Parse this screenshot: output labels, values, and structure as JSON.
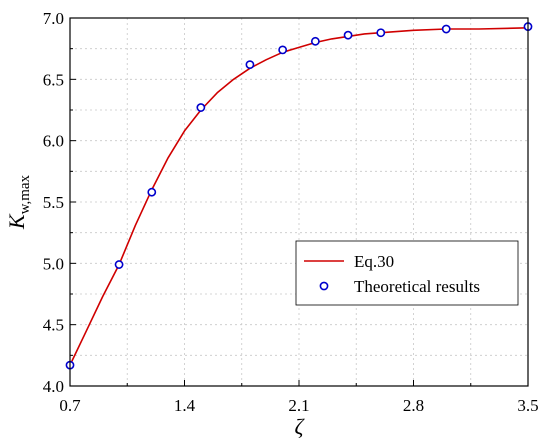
{
  "chart_data": {
    "type": "line",
    "xlabel": "ζ",
    "ylabel_main": "K",
    "ylabel_sub": "w,max",
    "xlim": [
      0.7,
      3.5
    ],
    "ylim": [
      4.0,
      7.0
    ],
    "xticks": [
      "0.7",
      "1.4",
      "2.1",
      "2.8",
      "3.5"
    ],
    "yticks": [
      "4.0",
      "4.5",
      "5.0",
      "5.5",
      "6.0",
      "6.5",
      "7.0"
    ],
    "grid": true,
    "legend_position": "bottom-right",
    "series": [
      {
        "name": "Eq.30",
        "kind": "line",
        "color": "#d00000",
        "x": [
          0.7,
          0.8,
          0.9,
          1.0,
          1.1,
          1.2,
          1.3,
          1.4,
          1.5,
          1.6,
          1.7,
          1.8,
          1.9,
          2.0,
          2.1,
          2.2,
          2.3,
          2.4,
          2.5,
          2.6,
          2.8,
          3.0,
          3.2,
          3.5
        ],
        "y": [
          4.17,
          4.45,
          4.73,
          4.99,
          5.31,
          5.6,
          5.86,
          6.08,
          6.25,
          6.39,
          6.5,
          6.59,
          6.66,
          6.72,
          6.76,
          6.8,
          6.83,
          6.85,
          6.87,
          6.88,
          6.9,
          6.91,
          6.91,
          6.92
        ]
      },
      {
        "name": "Theoretical results",
        "kind": "scatter",
        "color": "#0000cc",
        "x": [
          0.7,
          1.0,
          1.2,
          1.5,
          1.8,
          2.0,
          2.2,
          2.4,
          2.6,
          3.0,
          3.5
        ],
        "y": [
          4.17,
          4.99,
          5.58,
          6.27,
          6.62,
          6.74,
          6.81,
          6.86,
          6.88,
          6.91,
          6.93
        ]
      }
    ]
  }
}
